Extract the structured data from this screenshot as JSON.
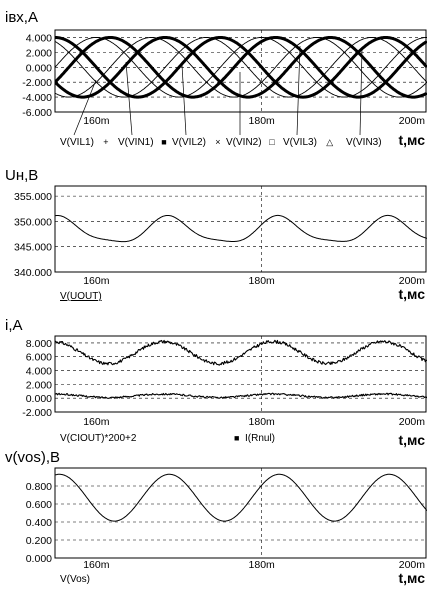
{
  "chart_data": [
    {
      "type": "line",
      "title": "iвх,A",
      "xlabel": "t,мс",
      "x_ticks": [
        "160m",
        "180m",
        "200m"
      ],
      "y_ticks": [
        "4.000",
        "2.000",
        "0.000",
        "-2.000",
        "-4.000",
        "-6.000"
      ],
      "ylim": [
        -6,
        5
      ],
      "xlim": [
        155,
        200
      ],
      "grid": true,
      "legend_placement": "bottom",
      "series": [
        {
          "name": "V(VIL1)",
          "marker": "+",
          "period_ms": 20,
          "amplitude": 4,
          "phase_deg": 180,
          "line": "heavy"
        },
        {
          "name": "V(VIN1)",
          "marker": "■",
          "period_ms": 20,
          "amplitude": 4,
          "phase_deg": 210,
          "line": "thin"
        },
        {
          "name": "V(VIL2)",
          "marker": "×",
          "period_ms": 20,
          "amplitude": 4,
          "phase_deg": 60,
          "line": "heavy"
        },
        {
          "name": "V(VIN2)",
          "marker": "□",
          "period_ms": 20,
          "amplitude": 4,
          "phase_deg": 90,
          "line": "thin"
        },
        {
          "name": "V(VIL3)",
          "marker": "△",
          "period_ms": 20,
          "amplitude": 4,
          "phase_deg": 300,
          "line": "heavy"
        },
        {
          "name": "V(VIN3)",
          "marker": "",
          "period_ms": 20,
          "amplitude": 4,
          "phase_deg": 330,
          "line": "thin"
        }
      ]
    },
    {
      "type": "line",
      "title": "Uн,B",
      "xlabel": "t,мс",
      "x_ticks": [
        "160m",
        "180m",
        "200m"
      ],
      "y_ticks": [
        "355.000",
        "350.000",
        "345.000",
        "340.000"
      ],
      "ylim": [
        340,
        357
      ],
      "xlim": [
        155,
        200
      ],
      "grid": true,
      "series": [
        {
          "name": "V(UOUT)",
          "offset": 348.1,
          "amp1": 2.5,
          "period1_ms": 13.3,
          "amp2": 0.6,
          "period2_ms": 6.67,
          "phase_deg": 200
        }
      ]
    },
    {
      "type": "line",
      "title": "i,A",
      "xlabel": "t,мс",
      "x_ticks": [
        "160m",
        "180m",
        "200m"
      ],
      "y_ticks": [
        "8.000",
        "6.000",
        "4.000",
        "2.000",
        "0.000",
        "-2.000"
      ],
      "ylim": [
        -2,
        9
      ],
      "xlim": [
        155,
        200
      ],
      "grid": true,
      "series": [
        {
          "name": "V(CIOUT)*200+2",
          "marker": "",
          "offset": 6.6,
          "amp1": 1.6,
          "period1_ms": 13.3,
          "phase_deg": 220,
          "noise": 0.45
        },
        {
          "name": "I(Rnul)",
          "marker": "■",
          "offset": 0.35,
          "amp1": 0.25,
          "period1_ms": 13.3,
          "phase_deg": 220,
          "noise": 0.25
        }
      ]
    },
    {
      "type": "line",
      "title": "v(vos),B",
      "xlabel": "t,мс",
      "x_ticks": [
        "160m",
        "180m",
        "200m"
      ],
      "y_ticks": [
        "0.800",
        "0.600",
        "0.400",
        "0.200",
        "0.000"
      ],
      "ylim": [
        0,
        1
      ],
      "xlim": [
        155,
        200
      ],
      "grid": true,
      "series": [
        {
          "name": "V(Vos)",
          "offset": 0.67,
          "amp1": 0.26,
          "period1_ms": 13.3,
          "phase_deg": 200
        }
      ]
    }
  ]
}
